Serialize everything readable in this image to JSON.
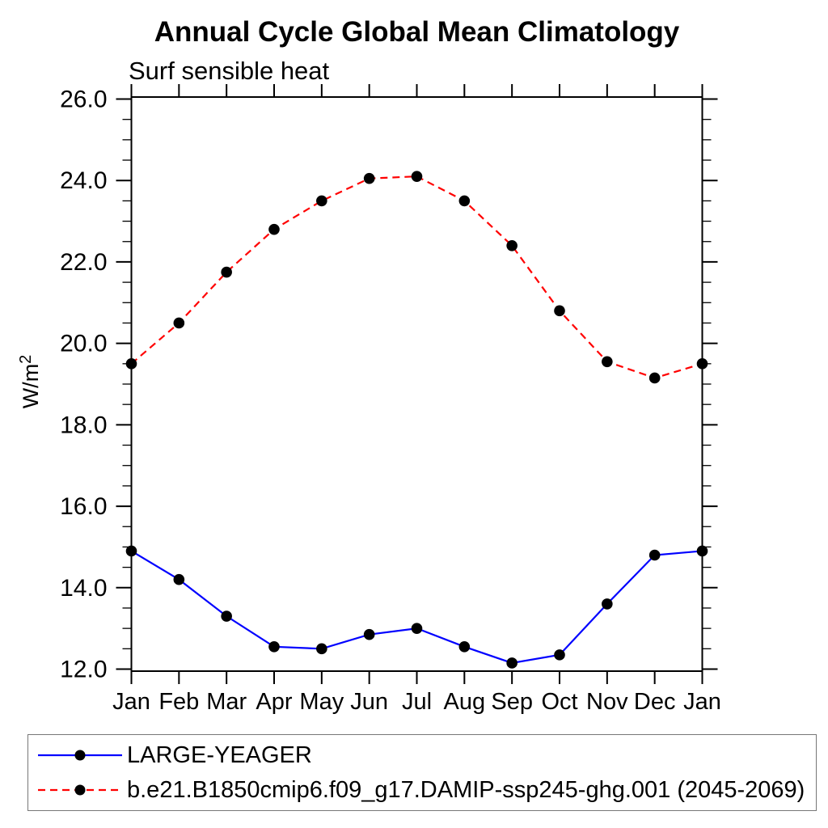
{
  "title": "Annual Cycle Global Mean Climatology",
  "subtitle": "Surf sensible heat",
  "chart_data": {
    "type": "line",
    "categories": [
      "Jan",
      "Feb",
      "Mar",
      "Apr",
      "May",
      "Jun",
      "Jul",
      "Aug",
      "Sep",
      "Oct",
      "Nov",
      "Dec",
      "Jan"
    ],
    "ylabel_base": "W/m",
    "ylabel_superscript": "2",
    "ylim": [
      12.0,
      26.0
    ],
    "ytick_step": 2.0,
    "yminor_step": 0.5,
    "ytick_labels": [
      "12.0",
      "14.0",
      "16.0",
      "18.0",
      "20.0",
      "22.0",
      "24.0",
      "26.0"
    ],
    "grid": false,
    "legend_position": "bottom box",
    "series": [
      {
        "name": "LARGE-YEAGER",
        "color": "#0000ff",
        "line_style": "solid",
        "marker": "filled-circle",
        "marker_color": "#000000",
        "values": [
          14.9,
          14.2,
          13.3,
          12.55,
          12.5,
          12.85,
          13.0,
          12.55,
          12.15,
          12.35,
          13.6,
          14.8,
          14.9
        ]
      },
      {
        "name": "b.e21.B1850cmip6.f09_g17.DAMIP-ssp245-ghg.001 (2045-2069)",
        "color": "#ff0000",
        "line_style": "dashed",
        "marker": "filled-circle",
        "marker_color": "#000000",
        "values": [
          19.5,
          20.5,
          21.75,
          22.8,
          23.5,
          24.05,
          24.1,
          23.5,
          22.4,
          20.8,
          19.55,
          19.15,
          19.5
        ]
      }
    ]
  },
  "colors": {
    "axis": "#000000",
    "background": "#ffffff"
  }
}
